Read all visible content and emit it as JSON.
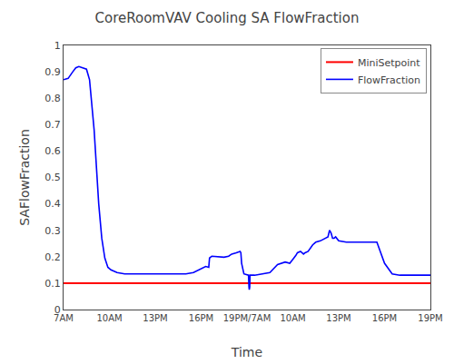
{
  "chart_data": {
    "type": "line",
    "title": "CoreRoomVAV Cooling SA FlowFraction",
    "xlabel": "Time",
    "ylabel": "SAFlowFraction",
    "xlim": [
      0,
      24
    ],
    "xticks": [
      {
        "value": 0,
        "label": "7AM"
      },
      {
        "value": 3,
        "label": "10AM"
      },
      {
        "value": 6,
        "label": "13PM"
      },
      {
        "value": 9,
        "label": "16PM"
      },
      {
        "value": 12,
        "label": "19PM/7AM"
      },
      {
        "value": 15,
        "label": "10AM"
      },
      {
        "value": 18,
        "label": "13PM"
      },
      {
        "value": 21,
        "label": "16PM"
      },
      {
        "value": 24,
        "label": "19PM"
      }
    ],
    "ylim": [
      0,
      1
    ],
    "yticks": [
      0,
      0.1,
      0.2,
      0.3,
      0.4,
      0.5,
      0.6,
      0.7,
      0.8,
      0.9,
      1
    ],
    "grid": false,
    "legend": "upper right",
    "series": [
      {
        "name": "MiniSetpoint",
        "color": "red",
        "type": "hline",
        "values": [
          0.1
        ]
      },
      {
        "name": "FlowFraction",
        "color": "blue",
        "type": "line",
        "x": [
          0,
          0.3,
          0.6,
          0.8,
          1.0,
          1.2,
          1.5,
          1.7,
          2.0,
          2.3,
          2.5,
          2.7,
          2.9,
          3.1,
          3.5,
          4.0,
          5.0,
          6.0,
          7.0,
          8.0,
          8.5,
          9.0,
          9.3,
          9.5,
          9.55,
          9.7,
          10.0,
          10.5,
          10.8,
          11.0,
          11.3,
          11.5,
          11.55,
          11.6,
          11.65,
          11.8,
          12.0,
          12.1,
          12.13,
          12.15,
          12.18,
          12.2,
          12.5,
          13.0,
          13.5,
          14.0,
          14.3,
          14.5,
          14.8,
          14.9,
          15.0,
          15.2,
          15.3,
          15.5,
          15.7,
          15.8,
          16.0,
          16.3,
          16.5,
          16.8,
          17.0,
          17.2,
          17.3,
          17.4,
          17.5,
          17.6,
          17.7,
          17.8,
          18.0,
          18.5,
          19.0,
          19.5,
          20.0,
          20.5,
          21.0,
          21.5,
          22.0,
          24.0
        ],
        "values": [
          0.87,
          0.875,
          0.9,
          0.915,
          0.92,
          0.915,
          0.91,
          0.87,
          0.68,
          0.4,
          0.27,
          0.195,
          0.16,
          0.15,
          0.14,
          0.135,
          0.135,
          0.135,
          0.135,
          0.135,
          0.14,
          0.155,
          0.163,
          0.16,
          0.195,
          0.202,
          0.2,
          0.198,
          0.202,
          0.21,
          0.215,
          0.22,
          0.22,
          0.215,
          0.175,
          0.135,
          0.13,
          0.13,
          0.085,
          0.075,
          0.085,
          0.13,
          0.13,
          0.135,
          0.14,
          0.17,
          0.175,
          0.18,
          0.175,
          0.185,
          0.19,
          0.205,
          0.215,
          0.22,
          0.21,
          0.215,
          0.22,
          0.245,
          0.255,
          0.26,
          0.265,
          0.27,
          0.275,
          0.3,
          0.29,
          0.27,
          0.27,
          0.275,
          0.26,
          0.255,
          0.255,
          0.255,
          0.255,
          0.255,
          0.175,
          0.135,
          0.13,
          0.13
        ]
      }
    ]
  }
}
